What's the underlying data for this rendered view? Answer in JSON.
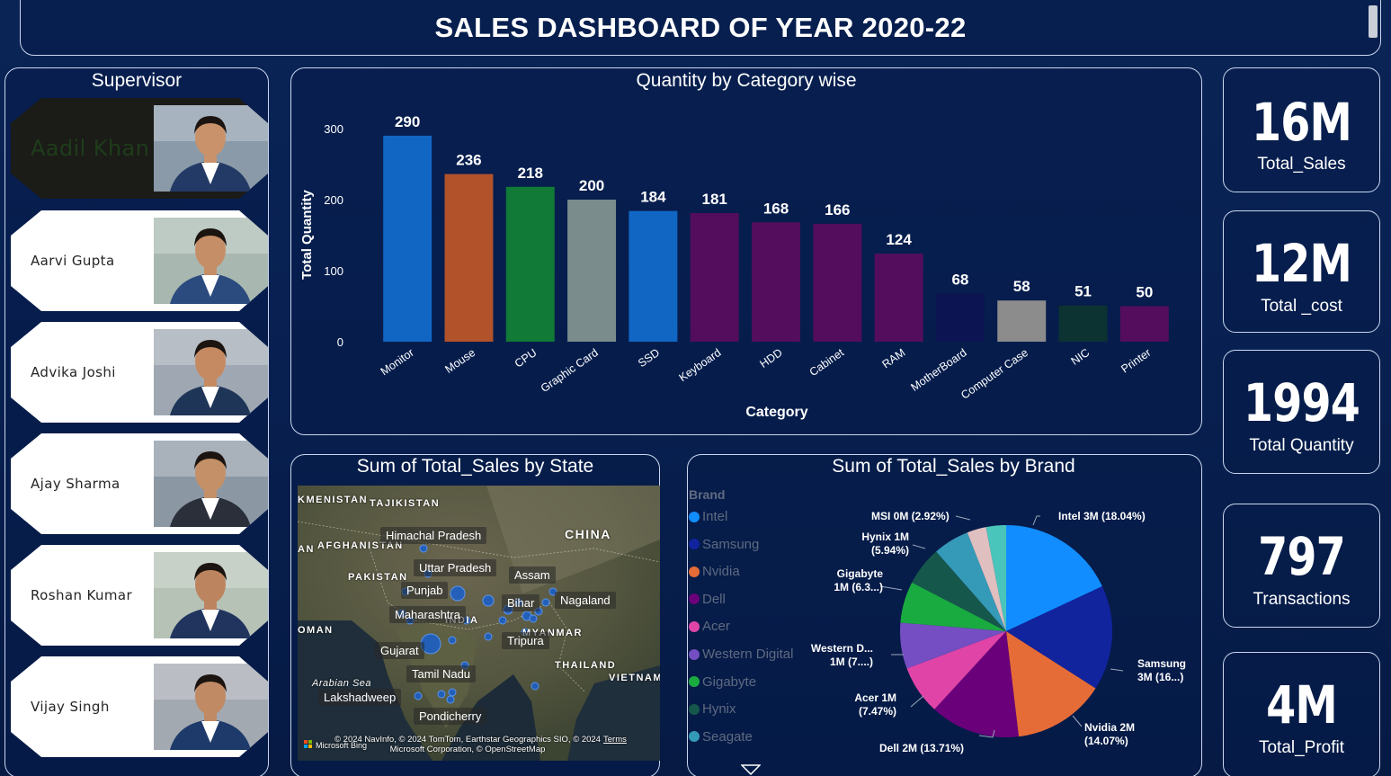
{
  "header": {
    "title": "SALES DASHBOARD OF YEAR 2020-22"
  },
  "supervisors": {
    "title": "Supervisor",
    "items": [
      {
        "name": "Aadil Khan",
        "active": true
      },
      {
        "name": "Aarvi Gupta",
        "active": false
      },
      {
        "name": "Advika Joshi",
        "active": false
      },
      {
        "name": "Ajay Sharma",
        "active": false
      },
      {
        "name": "Roshan Kumar",
        "active": false
      },
      {
        "name": "Vijay Singh",
        "active": false
      }
    ]
  },
  "kpis": [
    {
      "value": "16M",
      "label": "Total_Sales"
    },
    {
      "value": "12M",
      "label": "Total _cost"
    },
    {
      "value": "1994",
      "label": "Total Quantity"
    },
    {
      "value": "797",
      "label": "Transactions"
    },
    {
      "value": "4M",
      "label": "Total_Profit"
    }
  ],
  "map": {
    "title": "Sum of Total_Sales by State",
    "states": [
      "Himachal Pradesh",
      "Uttar Pradesh",
      "Assam",
      "Punjab",
      "Bihar",
      "Nagaland",
      "Maharashtra",
      "Tripura",
      "Gujarat",
      "Tamil Nadu",
      "Lakshadweep",
      "Pondicherry"
    ],
    "countries": [
      "KMENISTAN",
      "TAJIKISTAN",
      "CHINA",
      "AN",
      "AFGHANISTAN",
      "PAKISTAN",
      "OMAN",
      "INDIA",
      "MYANMAR",
      "THAILAND",
      "VIETNAM"
    ],
    "sea": "Arabian Sea",
    "credit_line1": "© 2024 NavInfo, © 2024 TomTom, Earthstar Geographics SIO, © 2024 Microsoft Corporation, © OpenStreetMap",
    "credit_terms": "Terms",
    "bing": "Microsoft Bing"
  },
  "chart_data": [
    {
      "type": "bar",
      "title": "Quantity by Category wise",
      "xlabel": "Category",
      "ylabel": "Total Quantity",
      "ylim": [
        0,
        300
      ],
      "yticks": [
        0,
        100,
        200,
        300
      ],
      "categories": [
        "Monitor",
        "Mouse",
        "CPU",
        "Graphic Card",
        "SSD",
        "Keyboard",
        "HDD",
        "Cabinet",
        "RAM",
        "MotherBoard",
        "Computer Case",
        "NIC",
        "Printer"
      ],
      "values": [
        290,
        236,
        218,
        200,
        184,
        181,
        168,
        166,
        124,
        68,
        58,
        51,
        50
      ],
      "colors": [
        "#1166c4",
        "#b1522a",
        "#117a36",
        "#7a8c8c",
        "#1166c4",
        "#540d5c",
        "#540d5c",
        "#540d5c",
        "#540d5c",
        "#0c1452",
        "#8c8c8c",
        "#0c3232",
        "#540d5c"
      ]
    },
    {
      "type": "pie",
      "title": "Sum of Total_Sales by Brand",
      "legend_title": "Brand",
      "legend": [
        "Intel",
        "Samsung",
        "Nvidia",
        "Dell",
        "Acer",
        "Western Digital",
        "Gigabyte",
        "Hynix",
        "Seagate"
      ],
      "slices": [
        {
          "name": "Intel",
          "percent": 18.04,
          "label": "Intel 3M (18.04%)",
          "color": "#118dff"
        },
        {
          "name": "Samsung",
          "percent": 16.0,
          "label": "Samsung 3M (16...)",
          "color": "#12239e"
        },
        {
          "name": "Nvidia",
          "percent": 14.07,
          "label": "Nvidia 2M (14.07%)",
          "color": "#e66c37"
        },
        {
          "name": "Dell",
          "percent": 13.71,
          "label": "Dell 2M (13.71%)",
          "color": "#6b007b"
        },
        {
          "name": "Acer",
          "percent": 7.47,
          "label": "Acer 1M (7.47%)",
          "color": "#e044a7"
        },
        {
          "name": "Western Digital",
          "percent": 7.0,
          "label": "Western D... 1M (7....)",
          "color": "#744ec2"
        },
        {
          "name": "Gigabyte",
          "percent": 6.3,
          "label": "Gigabyte 1M (6.3...)",
          "color": "#1aab40"
        },
        {
          "name": "Hynix",
          "percent": 5.94,
          "label": "Hynix 1M (5.94%)",
          "color": "#15584b"
        },
        {
          "name": "Seagate",
          "percent": 5.5,
          "label": "",
          "color": "#3599b8"
        },
        {
          "name": "MSI",
          "percent": 2.92,
          "label": "MSI 0M (2.92%)",
          "color": "#dfbfbf"
        },
        {
          "name": "Other",
          "percent": 3.05,
          "label": "",
          "color": "#4ac5bb"
        }
      ]
    }
  ]
}
